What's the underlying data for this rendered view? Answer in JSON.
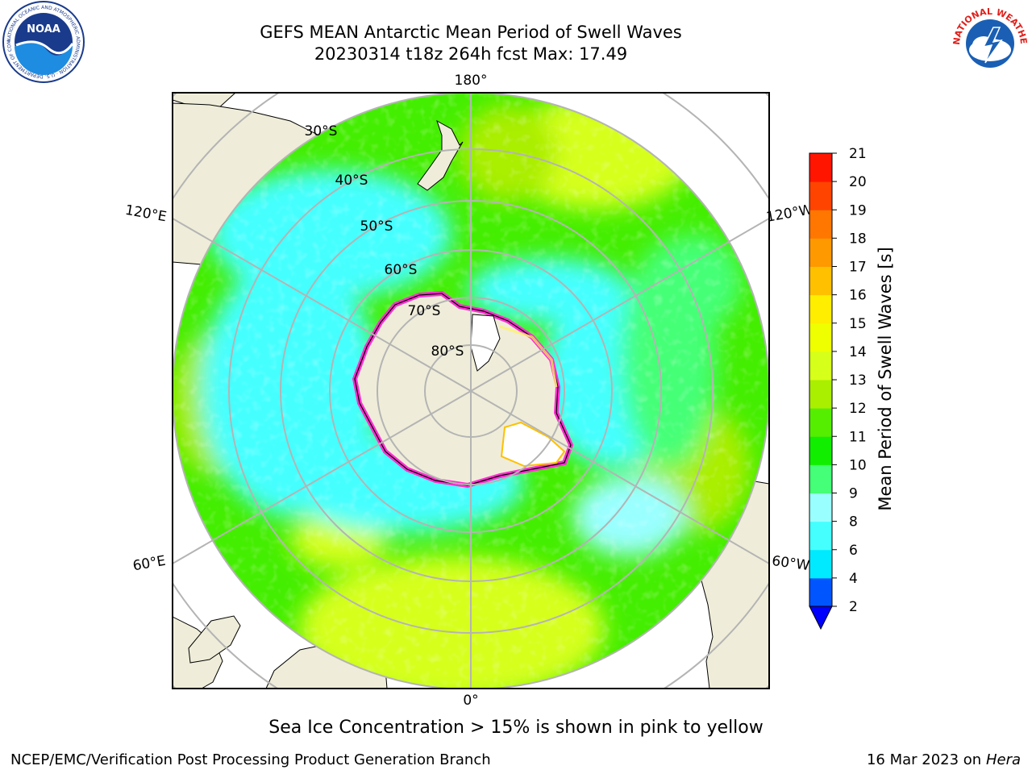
{
  "title": {
    "line1": "GEFS MEAN Antarctic Mean Period of Swell Waves",
    "line2": "20230314 t18z 264h fcst   Max: 17.49"
  },
  "logos": {
    "noaa": "NOAA",
    "noaa_ring": "NATIONAL OCEANIC AND ATMOSPHERIC ADMINISTRATION · U.S. DEPARTMENT OF COMMERCE",
    "nws_ring": "NATIONAL WEATHER SERVICE"
  },
  "map": {
    "projection": "south-polar-stereographic",
    "longitude_labels": {
      "top": "180°",
      "bottom": "0°",
      "upper_left": "120°E",
      "upper_right": "120°W",
      "lower_left": "60°E",
      "lower_right": "60°W"
    },
    "latitude_labels": [
      "30°S",
      "40°S",
      "50°S",
      "60°S",
      "70°S",
      "80°S"
    ],
    "colors": {
      "land": "#efedd9",
      "ice_pink": "#ff2fd1",
      "ice_yellow": "#fff06a",
      "ocean_cyan": "#45ffff",
      "ocean_green": "#44ee00",
      "ocean_yellow": "#d6ff1a",
      "grid": "#b4b4b4"
    }
  },
  "colorbar": {
    "label": "Mean Period of Swell Waves [s]",
    "ticks": [
      "2",
      "4",
      "6",
      "8",
      "9",
      "10",
      "11",
      "12",
      "13",
      "14",
      "15",
      "16",
      "17",
      "18",
      "19",
      "20",
      "21"
    ],
    "colors": [
      "#0055ff",
      "#00eaff",
      "#45ffff",
      "#9affff",
      "#44ff77",
      "#11ee00",
      "#55ee00",
      "#aaee00",
      "#d6ff1a",
      "#efff00",
      "#ffee00",
      "#ffc000",
      "#ff9900",
      "#ff7700",
      "#ff4400",
      "#ff1500",
      "#ff0000"
    ],
    "extend_color": "#0000ff"
  },
  "footer": {
    "note": "Sea Ice Concentration > 15% is shown in pink to yellow",
    "credit": "NCEP/EMC/Verification Post Processing Product Generation Branch",
    "date": "16 Mar 2023 on",
    "machine": "Hera"
  }
}
